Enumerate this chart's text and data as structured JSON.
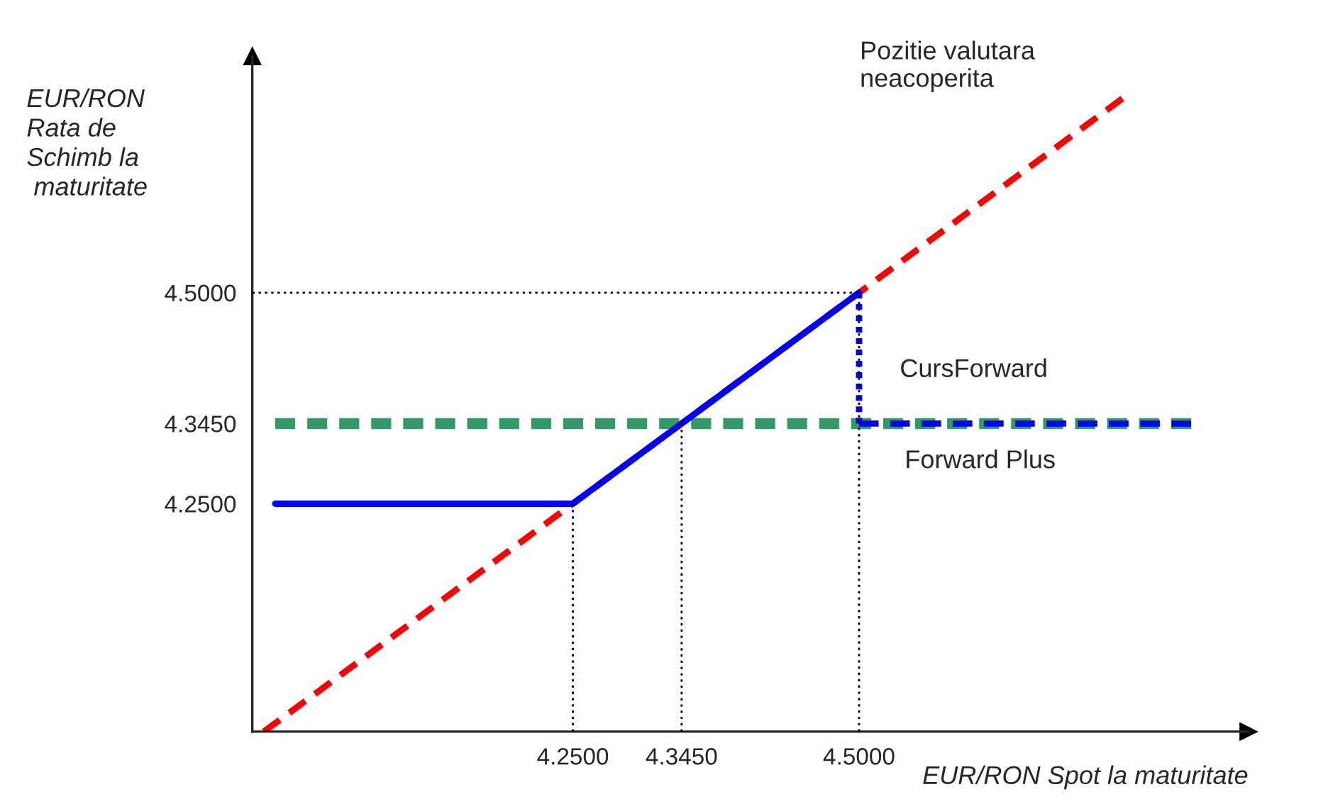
{
  "chart_data": {
    "type": "line",
    "xlabel": "EUR/RON Spot la maturitate",
    "ylabel": "EUR/RON Rata de Schimb la maturitate",
    "xlim": [
      3.97,
      4.84
    ],
    "ylim": [
      3.98,
      4.78
    ],
    "xticks": [
      {
        "value": 4.25,
        "label": "4.2500"
      },
      {
        "value": 4.345,
        "label": "4.3450"
      },
      {
        "value": 4.5,
        "label": "4.5000"
      }
    ],
    "yticks": [
      {
        "value": 4.25,
        "label": "4.2500"
      },
      {
        "value": 4.345,
        "label": "4.3450"
      },
      {
        "value": 4.5,
        "label": "4.5000"
      }
    ],
    "grid": false,
    "legend": false,
    "series": [
      {
        "color": "#000000",
        "line_style": "dotted",
        "x": [
          4.25,
          4.25
        ],
        "values": [
          3.98,
          4.25
        ]
      },
      {
        "color": "#000000",
        "line_style": "dotted",
        "x": [
          4.345,
          4.345
        ],
        "values": [
          3.98,
          4.345
        ]
      },
      {
        "color": "#000000",
        "line_style": "dotted",
        "x": [
          3.97,
          4.5,
          4.5
        ],
        "values": [
          4.5,
          4.5,
          3.98
        ]
      },
      {
        "color": "#ff0000",
        "line_style": "dashed",
        "x": [
          3.98,
          4.73
        ],
        "values": [
          3.98,
          4.73
        ]
      },
      {
        "color": "#339966",
        "line_style": "dashed",
        "x": [
          3.99,
          4.79
        ],
        "values": [
          4.345,
          4.345
        ]
      },
      {
        "color": "#0000ff",
        "line_style": "solid",
        "x": [
          3.99,
          4.25,
          4.5
        ],
        "values": [
          4.25,
          4.25,
          4.5
        ]
      },
      {
        "color": "#0000ff",
        "line_style": "dotted",
        "x": [
          4.5,
          4.5
        ],
        "values": [
          4.5,
          4.345
        ]
      },
      {
        "color": "#0000ff",
        "line_style": "dashed",
        "x": [
          4.5,
          4.79
        ],
        "values": [
          4.345,
          4.345
        ]
      }
    ],
    "annotations": [
      "Pozitie valutara\nneacoperita",
      "CursForward",
      "Forward Plus"
    ]
  }
}
